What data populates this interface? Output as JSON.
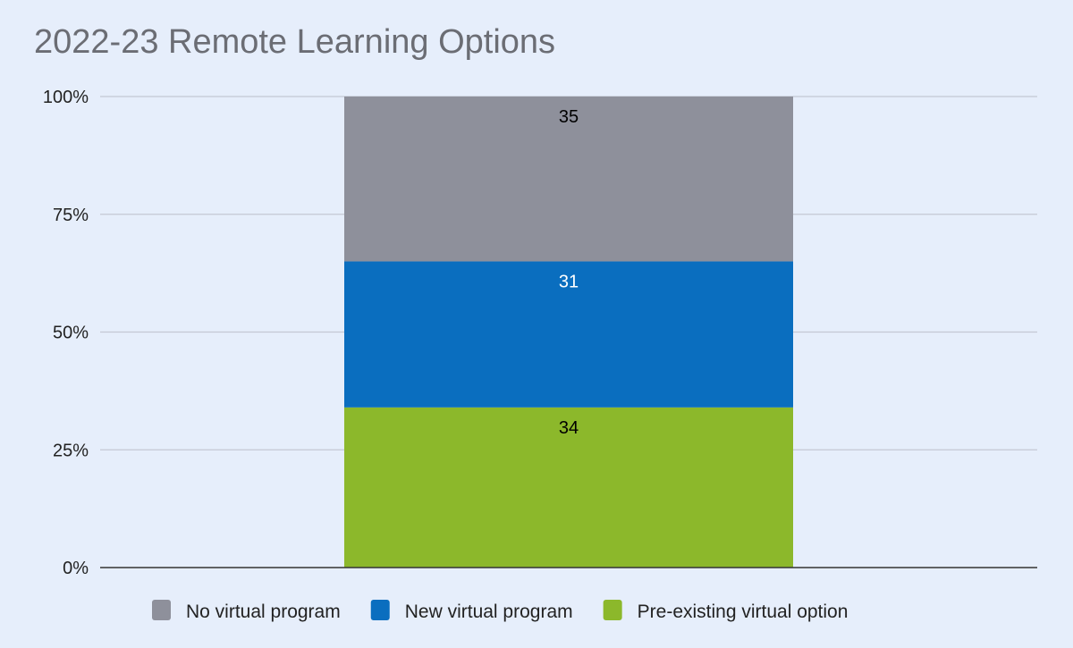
{
  "chart_data": {
    "type": "bar",
    "stacked": "percent",
    "title": "2022-23 Remote Learning Options",
    "xlabel": "",
    "ylabel": "",
    "ylim": [
      0,
      100
    ],
    "yticks": [
      "0%",
      "25%",
      "50%",
      "75%",
      "100%"
    ],
    "grid": true,
    "legend_position": "bottom",
    "categories": [
      ""
    ],
    "series": [
      {
        "name": "Pre-existing virtual option",
        "values": [
          34
        ],
        "color": "#8cb82b",
        "label_color": "#000000"
      },
      {
        "name": "New virtual program",
        "values": [
          31
        ],
        "color": "#0a6ebf",
        "label_color": "#ffffff"
      },
      {
        "name": "No virtual program",
        "values": [
          35
        ],
        "color": "#8e909b",
        "label_color": "#000000"
      }
    ],
    "legend_order": [
      2,
      1,
      0
    ]
  }
}
